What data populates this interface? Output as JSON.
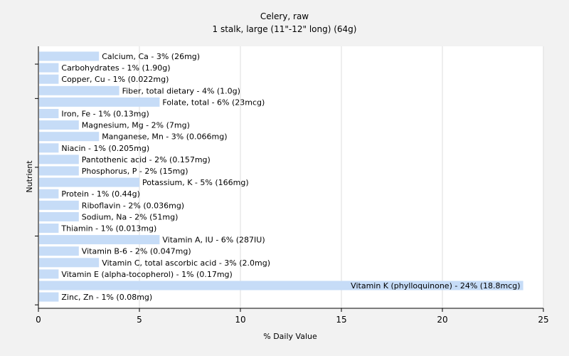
{
  "chart_data": {
    "type": "bar",
    "orientation": "horizontal",
    "title": "Celery, raw",
    "subtitle": "1 stalk, large (11\"-12\" long) (64g)",
    "xlabel": "% Daily Value",
    "ylabel": "Nutrient",
    "xlim": [
      0,
      25
    ],
    "xticks": [
      0,
      5,
      10,
      15,
      20,
      25
    ],
    "grid": true,
    "colors": {
      "bar": "#c6dcf7",
      "grid": "#dddddd",
      "background": "#f2f2f2",
      "plot_background": "#ffffff"
    },
    "categories": [
      "Calcium, Ca - 3% (26mg)",
      "Carbohydrates - 1% (1.90g)",
      "Copper, Cu - 1% (0.022mg)",
      "Fiber, total dietary - 4% (1.0g)",
      "Folate, total - 6% (23mcg)",
      "Iron, Fe - 1% (0.13mg)",
      "Magnesium, Mg - 2% (7mg)",
      "Manganese, Mn - 3% (0.066mg)",
      "Niacin - 1% (0.205mg)",
      "Pantothenic acid - 2% (0.157mg)",
      "Phosphorus, P - 2% (15mg)",
      "Potassium, K - 5% (166mg)",
      "Protein - 1% (0.44g)",
      "Riboflavin - 2% (0.036mg)",
      "Sodium, Na - 2% (51mg)",
      "Thiamin - 1% (0.013mg)",
      "Vitamin A, IU - 6% (287IU)",
      "Vitamin B-6 - 2% (0.047mg)",
      "Vitamin C, total ascorbic acid - 3% (2.0mg)",
      "Vitamin E (alpha-tocopherol) - 1% (0.17mg)",
      "Vitamin K (phylloquinone) - 24% (18.8mcg)",
      "Zinc, Zn - 1% (0.08mg)"
    ],
    "values": [
      3,
      1,
      1,
      4,
      6,
      1,
      2,
      3,
      1,
      2,
      2,
      5,
      1,
      2,
      2,
      1,
      6,
      2,
      3,
      1,
      24,
      1
    ]
  }
}
